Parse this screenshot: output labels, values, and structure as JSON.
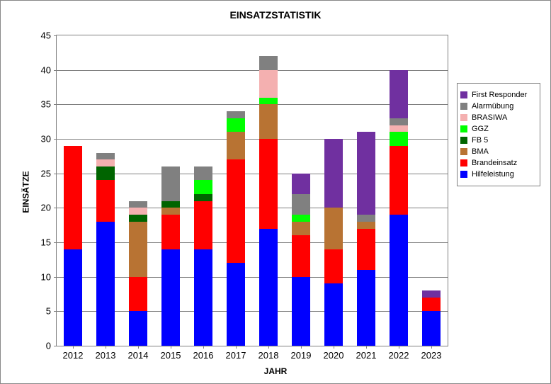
{
  "chart": {
    "type": "bar-stacked",
    "title": "EINSATZSTATISTIK",
    "title_fontsize": 14,
    "y_label": "EINSÄTZE",
    "x_label": "JAHR",
    "axis_label_fontsize": 12,
    "tick_fontsize": 13,
    "background_color": "#ffffff",
    "border_color": "#888888",
    "grid_color": "#808080",
    "ylim": [
      0,
      45
    ],
    "ytick_step": 5,
    "categories": [
      "2012",
      "2013",
      "2014",
      "2015",
      "2016",
      "2017",
      "2018",
      "2019",
      "2020",
      "2021",
      "2022",
      "2023"
    ],
    "series": [
      {
        "key": "first_responder",
        "label": "First Responder",
        "color": "#7030a0"
      },
      {
        "key": "alarmuebung",
        "label": "Alarmübung",
        "color": "#808080"
      },
      {
        "key": "brasiwa",
        "label": "BRASIWA",
        "color": "#f4b0b0"
      },
      {
        "key": "ggz",
        "label": "GGZ",
        "color": "#00ff00"
      },
      {
        "key": "fb5",
        "label": "FB 5",
        "color": "#006400"
      },
      {
        "key": "bma",
        "label": "BMA",
        "color": "#b87333"
      },
      {
        "key": "brandeinsatz",
        "label": "Brandeinsatz",
        "color": "#ff0000"
      },
      {
        "key": "hilfeleistung",
        "label": "Hilfeleistung",
        "color": "#0000ff"
      }
    ],
    "stack_order": [
      "hilfeleistung",
      "brandeinsatz",
      "bma",
      "fb5",
      "ggz",
      "brasiwa",
      "alarmuebung",
      "first_responder"
    ],
    "data": {
      "hilfeleistung": [
        14,
        18,
        5,
        14,
        14,
        12,
        17,
        10,
        9,
        11,
        19,
        5
      ],
      "brandeinsatz": [
        15,
        6,
        5,
        5,
        7,
        15,
        13,
        6,
        5,
        6,
        10,
        2
      ],
      "bma": [
        0,
        0,
        8,
        1,
        0,
        4,
        5,
        2,
        6,
        1,
        0,
        0
      ],
      "fb5": [
        0,
        2,
        1,
        1,
        1,
        0,
        0,
        0,
        0,
        0,
        0,
        0
      ],
      "ggz": [
        0,
        0,
        0,
        0,
        2,
        2,
        1,
        1,
        0,
        0,
        2,
        0
      ],
      "brasiwa": [
        0,
        1,
        1,
        0,
        0,
        0,
        4,
        0,
        0,
        0,
        1,
        0
      ],
      "alarmuebung": [
        0,
        1,
        1,
        5,
        2,
        1,
        2,
        3,
        0,
        1,
        1,
        0
      ],
      "first_responder": [
        0,
        0,
        0,
        0,
        0,
        0,
        0,
        3,
        10,
        12,
        7,
        1
      ]
    },
    "bar_width_ratio": 0.58,
    "legend": {
      "position": "right",
      "fontsize": 11
    }
  }
}
